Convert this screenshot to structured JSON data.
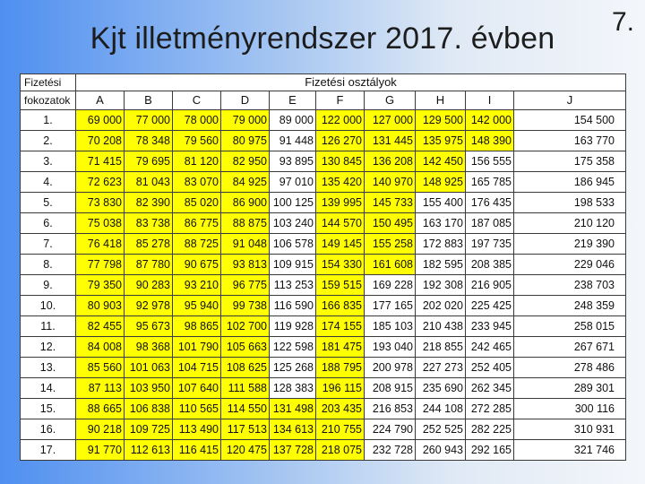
{
  "slide": {
    "title": "Kjt illetményrendszer 2017. évben",
    "number": "7."
  },
  "table": {
    "header": {
      "row_label_top": "Fizetési",
      "row_label_bottom": "fokozatok",
      "group_label": "Fizetési osztályok"
    },
    "columns": [
      "A",
      "B",
      "C",
      "D",
      "E",
      "F",
      "G",
      "H",
      "I",
      "J"
    ],
    "rows": [
      {
        "grade": "1.",
        "values": [
          "69 000",
          "77 000",
          "78 000",
          "79 000",
          "89 000",
          "122 000",
          "127 000",
          "129 500",
          "142 000",
          "154 500"
        ]
      },
      {
        "grade": "2.",
        "values": [
          "70 208",
          "78 348",
          "79 560",
          "80 975",
          "91 448",
          "126 270",
          "131 445",
          "135 975",
          "148 390",
          "163 770"
        ]
      },
      {
        "grade": "3.",
        "values": [
          "71 415",
          "79 695",
          "81 120",
          "82 950",
          "93 895",
          "130 845",
          "136 208",
          "142 450",
          "156 555",
          "175 358"
        ]
      },
      {
        "grade": "4.",
        "values": [
          "72 623",
          "81 043",
          "83 070",
          "84 925",
          "97 010",
          "135 420",
          "140 970",
          "148 925",
          "165 785",
          "186 945"
        ]
      },
      {
        "grade": "5.",
        "values": [
          "73 830",
          "82 390",
          "85 020",
          "86 900",
          "100 125",
          "139 995",
          "145 733",
          "155 400",
          "176 435",
          "198 533"
        ]
      },
      {
        "grade": "6.",
        "values": [
          "75 038",
          "83 738",
          "86 775",
          "88 875",
          "103 240",
          "144 570",
          "150 495",
          "163 170",
          "187 085",
          "210 120"
        ]
      },
      {
        "grade": "7.",
        "values": [
          "76 418",
          "85 278",
          "88 725",
          "91 048",
          "106 578",
          "149 145",
          "155 258",
          "172 883",
          "197 735",
          "219 390"
        ]
      },
      {
        "grade": "8.",
        "values": [
          "77 798",
          "87 780",
          "90 675",
          "93 813",
          "109 915",
          "154 330",
          "161 608",
          "182 595",
          "208 385",
          "229 046"
        ]
      },
      {
        "grade": "9.",
        "values": [
          "79 350",
          "90 283",
          "93 210",
          "96 775",
          "113 253",
          "159 515",
          "169 228",
          "192 308",
          "216 905",
          "238 703"
        ]
      },
      {
        "grade": "10.",
        "values": [
          "80 903",
          "92 978",
          "95 940",
          "99 738",
          "116 590",
          "166 835",
          "177 165",
          "202 020",
          "225 425",
          "248 359"
        ]
      },
      {
        "grade": "11.",
        "values": [
          "82 455",
          "95 673",
          "98 865",
          "102 700",
          "119 928",
          "174 155",
          "185 103",
          "210 438",
          "233 945",
          "258 015"
        ]
      },
      {
        "grade": "12.",
        "values": [
          "84 008",
          "98 368",
          "101 790",
          "105 663",
          "122 598",
          "181 475",
          "193 040",
          "218 855",
          "242 465",
          "267 671"
        ]
      },
      {
        "grade": "13.",
        "values": [
          "85 560",
          "101 063",
          "104 715",
          "108 625",
          "125 268",
          "188 795",
          "200 978",
          "227 273",
          "252 405",
          "278 486"
        ]
      },
      {
        "grade": "14.",
        "values": [
          "87 113",
          "103 950",
          "107 640",
          "111 588",
          "128 383",
          "196 115",
          "208 915",
          "235 690",
          "262 345",
          "289 301"
        ]
      },
      {
        "grade": "15.",
        "values": [
          "88 665",
          "106 838",
          "110 565",
          "114 550",
          "131 498",
          "203 435",
          "216 853",
          "244 108",
          "272 285",
          "300 116"
        ]
      },
      {
        "grade": "16.",
        "values": [
          "90 218",
          "109 725",
          "113 490",
          "117 513",
          "134 613",
          "210 755",
          "224 790",
          "252 525",
          "282 225",
          "310 931"
        ]
      },
      {
        "grade": "17.",
        "values": [
          "91 770",
          "112 613",
          "116 415",
          "120 475",
          "137 728",
          "218 075",
          "232 728",
          "260 943",
          "292 165",
          "321 746"
        ]
      }
    ]
  },
  "colors": {
    "highlight": "#ffff00",
    "plain_cell": "#ffffff",
    "background_left": "#4f8ff0",
    "background_right": "#f4f6fa"
  }
}
